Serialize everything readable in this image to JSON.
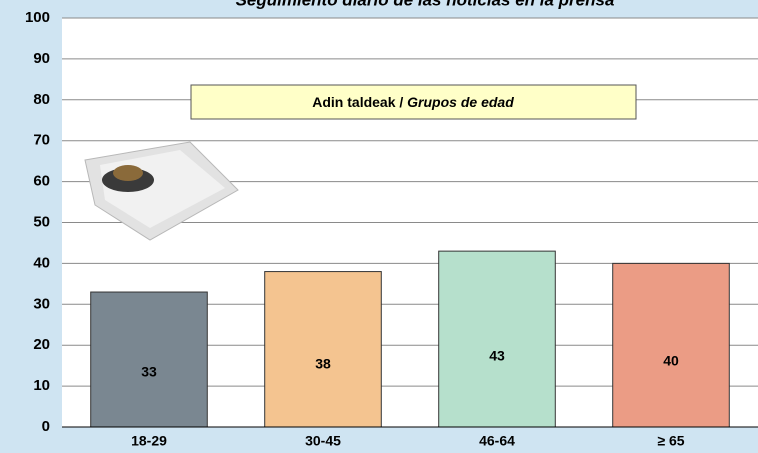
{
  "chart_data": {
    "type": "bar",
    "title": "Seguimiento diario de las noticias en la prensa",
    "annotation": {
      "basque": "Adin taldeak /",
      "spanish": "Grupos de edad"
    },
    "categories": [
      "18-29",
      "30-45",
      "46-64",
      "≥ 65"
    ],
    "values": [
      33,
      38,
      43,
      40
    ],
    "colors": [
      "#7a8791",
      "#f4c490",
      "#b6e0cc",
      "#eb9c85"
    ],
    "label_colors": [
      "#ffffff",
      "#000000",
      "#000000",
      "#000000"
    ],
    "ylim": [
      0,
      100
    ],
    "yticks": [
      0,
      10,
      20,
      30,
      40,
      50,
      60,
      70,
      80,
      90,
      100
    ],
    "grid": true
  }
}
